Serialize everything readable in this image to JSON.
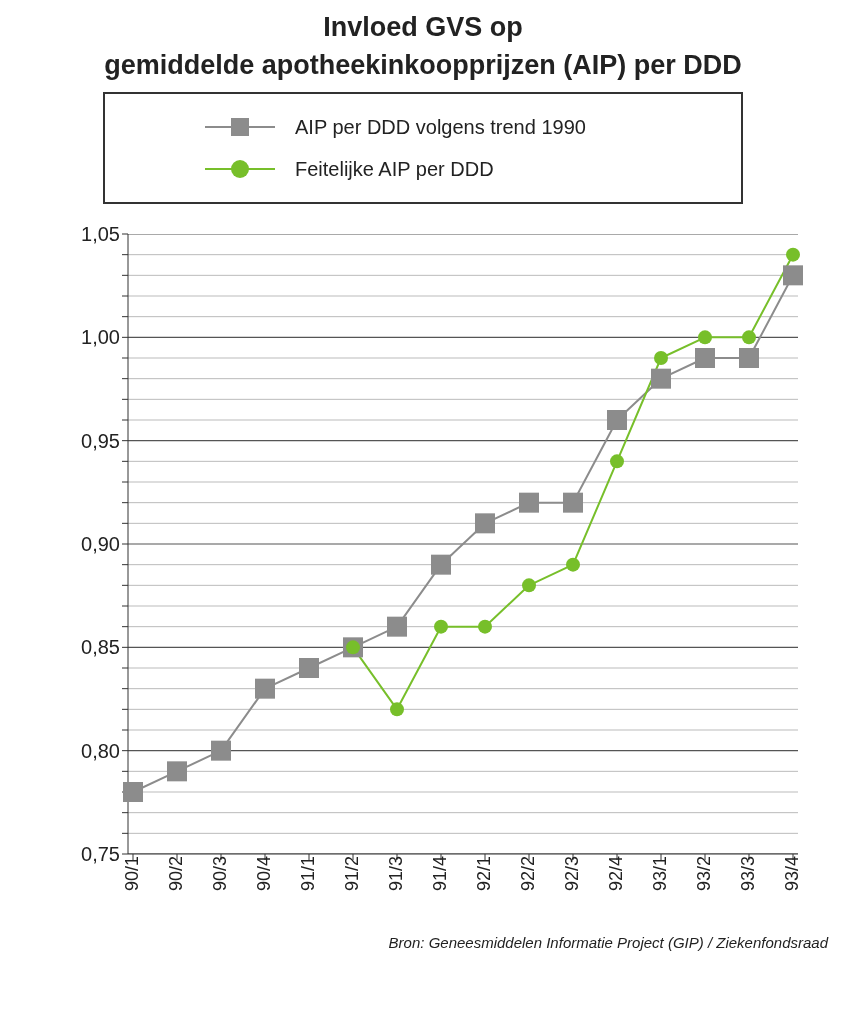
{
  "chart_data": {
    "type": "line",
    "title": "Invloed GVS op\ngemiddelde apotheekinkoopprijzen (AIP) per DDD",
    "categories": [
      "90/1",
      "90/2",
      "90/3",
      "90/4",
      "91/1",
      "91/2",
      "91/3",
      "91/4",
      "92/1",
      "92/2",
      "92/3",
      "92/4",
      "93/1",
      "93/2",
      "93/3",
      "93/4"
    ],
    "series": [
      {
        "name": "AIP per DDD volgens trend 1990",
        "color": "#8c8c8c",
        "marker": "square",
        "values": [
          0.78,
          0.79,
          0.8,
          0.83,
          0.84,
          0.85,
          0.86,
          0.89,
          0.91,
          0.92,
          0.92,
          0.96,
          0.98,
          0.99,
          0.99,
          1.03
        ]
      },
      {
        "name": "Feitelijke AIP per DDD",
        "color": "#77bf2a",
        "marker": "circle",
        "values": [
          null,
          null,
          null,
          null,
          null,
          0.85,
          0.82,
          0.86,
          0.86,
          0.88,
          0.89,
          0.94,
          0.99,
          1.0,
          1.0,
          1.04
        ]
      }
    ],
    "ylim": [
      0.75,
      1.05
    ],
    "yticks": [
      {
        "value": 0.75,
        "label": "0,75"
      },
      {
        "value": 0.76,
        "label": null
      },
      {
        "value": 0.77,
        "label": null
      },
      {
        "value": 0.78,
        "label": null
      },
      {
        "value": 0.79,
        "label": null
      },
      {
        "value": 0.8,
        "label": "0,80"
      },
      {
        "value": 0.81,
        "label": null
      },
      {
        "value": 0.82,
        "label": null
      },
      {
        "value": 0.83,
        "label": null
      },
      {
        "value": 0.84,
        "label": null
      },
      {
        "value": 0.85,
        "label": "0,85"
      },
      {
        "value": 0.86,
        "label": null
      },
      {
        "value": 0.87,
        "label": null
      },
      {
        "value": 0.88,
        "label": null
      },
      {
        "value": 0.89,
        "label": null
      },
      {
        "value": 0.9,
        "label": "0,90"
      },
      {
        "value": 0.91,
        "label": null
      },
      {
        "value": 0.92,
        "label": null
      },
      {
        "value": 0.93,
        "label": null
      },
      {
        "value": 0.94,
        "label": null
      },
      {
        "value": 0.95,
        "label": "0,95"
      },
      {
        "value": 0.96,
        "label": null
      },
      {
        "value": 0.97,
        "label": null
      },
      {
        "value": 0.98,
        "label": null
      },
      {
        "value": 0.99,
        "label": null
      },
      {
        "value": 1.0,
        "label": "1,00"
      },
      {
        "value": 1.01,
        "label": null
      },
      {
        "value": 1.02,
        "label": null
      },
      {
        "value": 1.03,
        "label": null
      },
      {
        "value": 1.04,
        "label": null
      },
      {
        "value": 1.05,
        "label": "1,05"
      }
    ],
    "grid": "y",
    "legend": "top",
    "line_style": "solid",
    "annotations": [
      "Bron: Geneesmiddelen Informatie Project (GIP) / Ziekenfondsraad"
    ]
  }
}
